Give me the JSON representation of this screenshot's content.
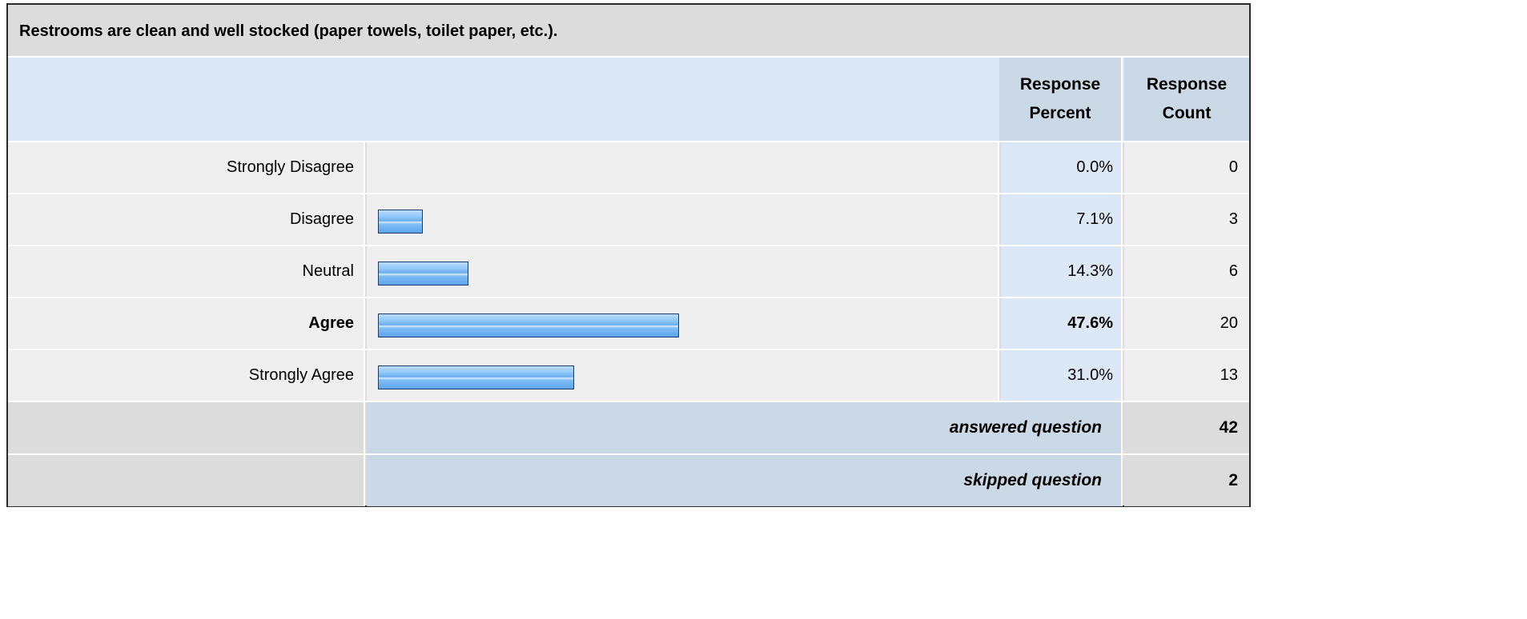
{
  "title": "Restrooms are clean and well stocked (paper towels, toilet paper, etc.).",
  "headers": {
    "percent_line1": "Response",
    "percent_line2": "Percent",
    "count_line1": "Response",
    "count_line2": "Count"
  },
  "chart_data": {
    "type": "bar",
    "orientation": "horizontal",
    "title": "Restrooms are clean and well stocked (paper towels, toilet paper, etc.).",
    "categories": [
      "Strongly Disagree",
      "Disagree",
      "Neutral",
      "Agree",
      "Strongly Agree"
    ],
    "series": [
      {
        "values": [
          0.0,
          7.1,
          14.3,
          47.6,
          31.0
        ]
      }
    ],
    "percent_labels": [
      "0.0%",
      "7.1%",
      "14.3%",
      "47.6%",
      "31.0%"
    ],
    "counts": [
      "0",
      "3",
      "6",
      "20",
      "13"
    ],
    "highlight_index": 3,
    "xlim": [
      0,
      100
    ]
  },
  "summary": {
    "answered_label": "answered question",
    "answered_value": "42",
    "skipped_label": "skipped question",
    "skipped_value": "2"
  },
  "colors": {
    "bar_fill": "#7fbdf5",
    "bar_border": "#1c3c6e",
    "header_bg": "#dce8f5",
    "row_bg": "#efefef"
  }
}
